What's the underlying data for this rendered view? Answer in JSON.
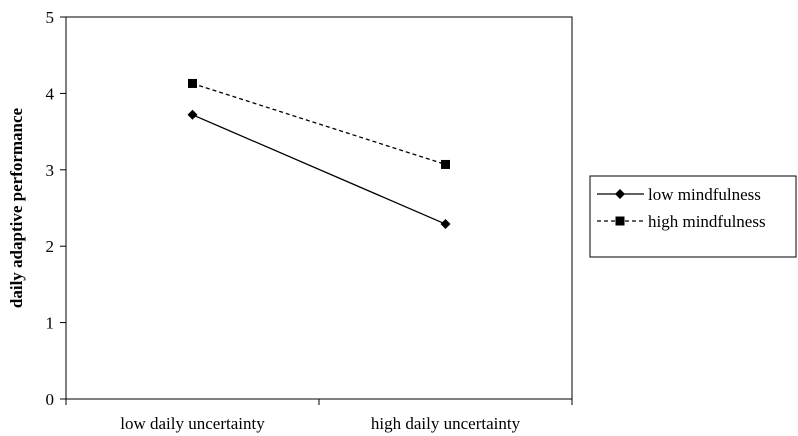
{
  "chart_data": {
    "type": "line",
    "title": "",
    "xlabel": "",
    "ylabel": "daily adaptive performance",
    "categories": [
      "low daily uncertainty",
      "high daily uncertainty"
    ],
    "ylim": [
      0,
      5
    ],
    "yticks": [
      "0",
      "1",
      "2",
      "3",
      "4",
      "5"
    ],
    "grid": false,
    "legend_position": "right",
    "series": [
      {
        "name": "low mindfulness",
        "values": [
          3.72,
          2.29
        ],
        "marker": "diamond",
        "line_style": "solid",
        "color": "#000000"
      },
      {
        "name": "high mindfulness",
        "values": [
          4.13,
          3.07
        ],
        "marker": "square",
        "line_style": "dashed",
        "color": "#000000"
      }
    ]
  }
}
